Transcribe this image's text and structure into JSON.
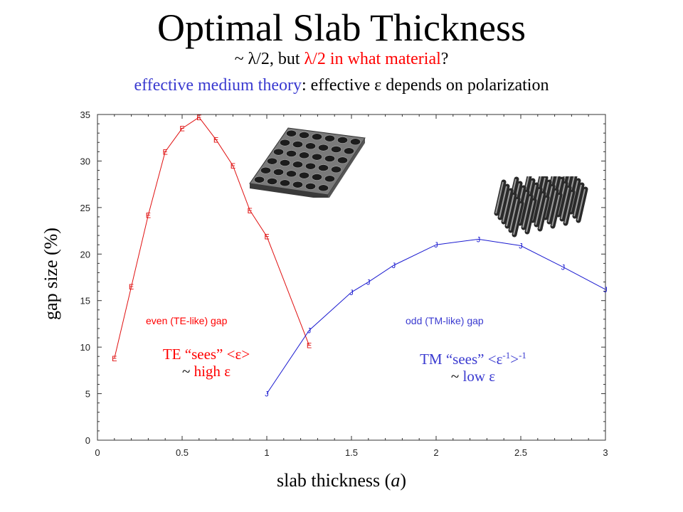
{
  "header": {
    "title": "Optimal Slab Thickness",
    "subtitle_prefix": "~ λ/2, but ",
    "subtitle_red": "λ/2 in what material",
    "subtitle_suffix": "?",
    "line2_blue": "effective medium theory",
    "line2_rest": ": effective ε depends on polarization"
  },
  "annotations": {
    "te_gap": "even (TE-like) gap",
    "tm_gap": "odd (TM-like) gap",
    "te_sees_prefix": "TE “sees” <",
    "te_eps": "ε",
    "te_sees_suffix": ">",
    "te_high_prefix": "~ ",
    "te_high": "high",
    "te_high_eps": " ε",
    "tm_sees_prefix": "TM “sees” <",
    "tm_eps": "ε",
    "tm_sup_inner": "-1",
    "tm_mid": ">",
    "tm_sup_outer": "-1",
    "tm_low_prefix": "~ ",
    "tm_low": "low",
    "tm_low_eps": " ε"
  },
  "icons": {
    "slab": "perforated-slab-icon",
    "rods": "rod-array-icon"
  },
  "colors": {
    "te": "#e01010",
    "tm": "#1a1ad0",
    "te_text": "#ff0000",
    "tm_text": "#3a3ad0"
  },
  "chart_data": {
    "type": "line",
    "title": "",
    "xlabel_prefix": "slab thickness (",
    "xlabel_var": "a",
    "xlabel_suffix": ")",
    "ylabel": "gap size (%)",
    "xlim": [
      0,
      3
    ],
    "ylim": [
      0,
      35
    ],
    "x_ticks": [
      "0",
      "0.5",
      "1",
      "1.5",
      "2",
      "2.5",
      "3"
    ],
    "y_ticks": [
      "0",
      "5",
      "10",
      "15",
      "20",
      "25",
      "30",
      "35"
    ],
    "series": [
      {
        "name": "even (TE-like) gap",
        "marker": "E",
        "x": [
          0.1,
          0.2,
          0.3,
          0.4,
          0.5,
          0.6,
          0.7,
          0.8,
          0.9,
          1.0,
          1.25
        ],
        "y": [
          8.8,
          16.5,
          24.2,
          31.0,
          33.5,
          34.7,
          32.3,
          29.5,
          24.7,
          21.9,
          10.2
        ]
      },
      {
        "name": "odd (TM-like) gap",
        "marker": "J",
        "x": [
          1.0,
          1.25,
          1.5,
          1.6,
          1.75,
          2.0,
          2.25,
          2.5,
          2.75,
          3.0
        ],
        "y": [
          5.0,
          11.8,
          15.9,
          17.0,
          18.8,
          21.0,
          21.6,
          20.9,
          18.6,
          16.2
        ]
      }
    ]
  }
}
